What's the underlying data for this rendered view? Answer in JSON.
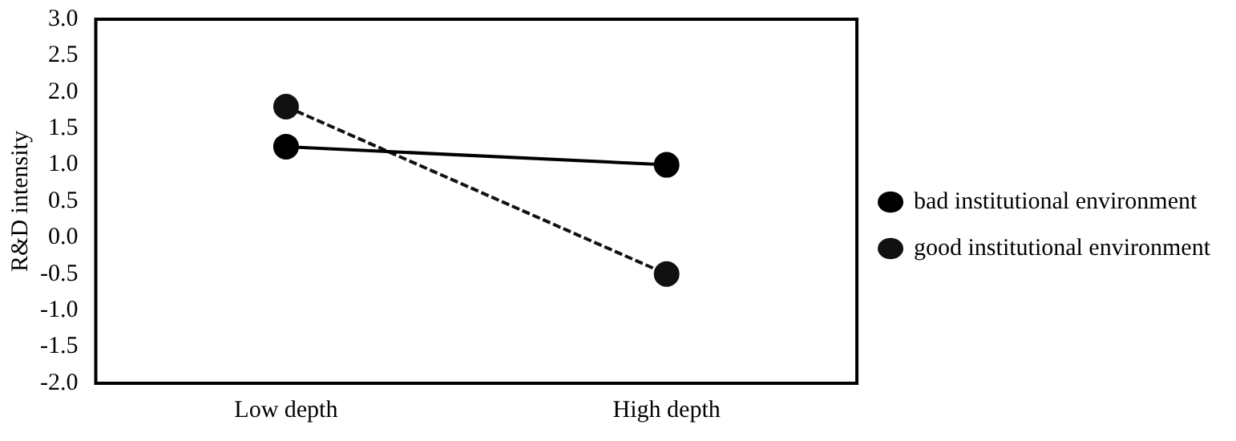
{
  "chart_data": {
    "type": "line",
    "ylabel": "R&D intensity",
    "categories": [
      "Low depth",
      "High depth"
    ],
    "series": [
      {
        "name": "bad institutional environment",
        "color": "#000000",
        "values": [
          1.25,
          1.0
        ],
        "line_style": "solid"
      },
      {
        "name": "good institutional environment",
        "color": "#111111",
        "values": [
          1.8,
          -0.5
        ],
        "line_style": "dashed"
      }
    ],
    "ylim": [
      -2.0,
      3.0
    ],
    "yticks": [
      {
        "value": -2,
        "label": "-2.0"
      },
      {
        "value": -1.5,
        "label": "-1.5"
      },
      {
        "value": -1,
        "label": "-1.0"
      },
      {
        "value": -0.5,
        "label": "-0.5"
      },
      {
        "value": 0,
        "label": "0.0"
      },
      {
        "value": 0.5,
        "label": "0.5"
      },
      {
        "value": 1,
        "label": "1.0"
      },
      {
        "value": 1.5,
        "label": "1.5"
      },
      {
        "value": 2,
        "label": "2.0"
      },
      {
        "value": 2.5,
        "label": "2.5"
      },
      {
        "value": 3,
        "label": "3.0"
      }
    ],
    "grid": false,
    "legend": "right",
    "marker": "circle"
  }
}
